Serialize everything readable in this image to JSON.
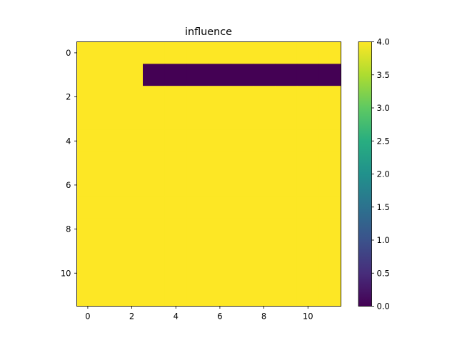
{
  "chart_data": {
    "type": "heatmap",
    "title": "influence",
    "xlabel": "",
    "ylabel": "",
    "rows": 12,
    "cols": 12,
    "values": [
      [
        4,
        4,
        4,
        4,
        4,
        4,
        4,
        4,
        4,
        4,
        4,
        4
      ],
      [
        4,
        4,
        4,
        0,
        0,
        0,
        0,
        0,
        0,
        0,
        0,
        0
      ],
      [
        4,
        4,
        4,
        4,
        4,
        4,
        4,
        4,
        4,
        4,
        4,
        4
      ],
      [
        4,
        4,
        4,
        4,
        4,
        4,
        4,
        4,
        4,
        4,
        4,
        4
      ],
      [
        4,
        4,
        4,
        4,
        4,
        4,
        4,
        4,
        4,
        4,
        4,
        4
      ],
      [
        4,
        4,
        4,
        4,
        4,
        4,
        4,
        4,
        4,
        4,
        4,
        4
      ],
      [
        4,
        4,
        4,
        4,
        4,
        4,
        4,
        4,
        4,
        4,
        4,
        4
      ],
      [
        4,
        4,
        4,
        4,
        4,
        4,
        4,
        4,
        4,
        4,
        4,
        4
      ],
      [
        4,
        4,
        4,
        4,
        4,
        4,
        4,
        4,
        4,
        4,
        4,
        4
      ],
      [
        4,
        4,
        4,
        4,
        4,
        4,
        4,
        4,
        4,
        4,
        4,
        4
      ],
      [
        4,
        4,
        4,
        4,
        4,
        4,
        4,
        4,
        4,
        4,
        4,
        4
      ],
      [
        4,
        4,
        4,
        4,
        4,
        4,
        4,
        4,
        4,
        4,
        4,
        4
      ]
    ],
    "x_ticks": [
      "0",
      "2",
      "4",
      "6",
      "8",
      "10"
    ],
    "y_ticks": [
      "0",
      "2",
      "4",
      "6",
      "8",
      "10"
    ],
    "colorbar": {
      "vmin": 0.0,
      "vmax": 4.0,
      "colormap": "viridis",
      "ticks": [
        "0.0",
        "0.5",
        "1.0",
        "1.5",
        "2.0",
        "2.5",
        "3.0",
        "3.5",
        "4.0"
      ]
    },
    "colors": {
      "low": "#440154",
      "high": "#fde725"
    }
  }
}
